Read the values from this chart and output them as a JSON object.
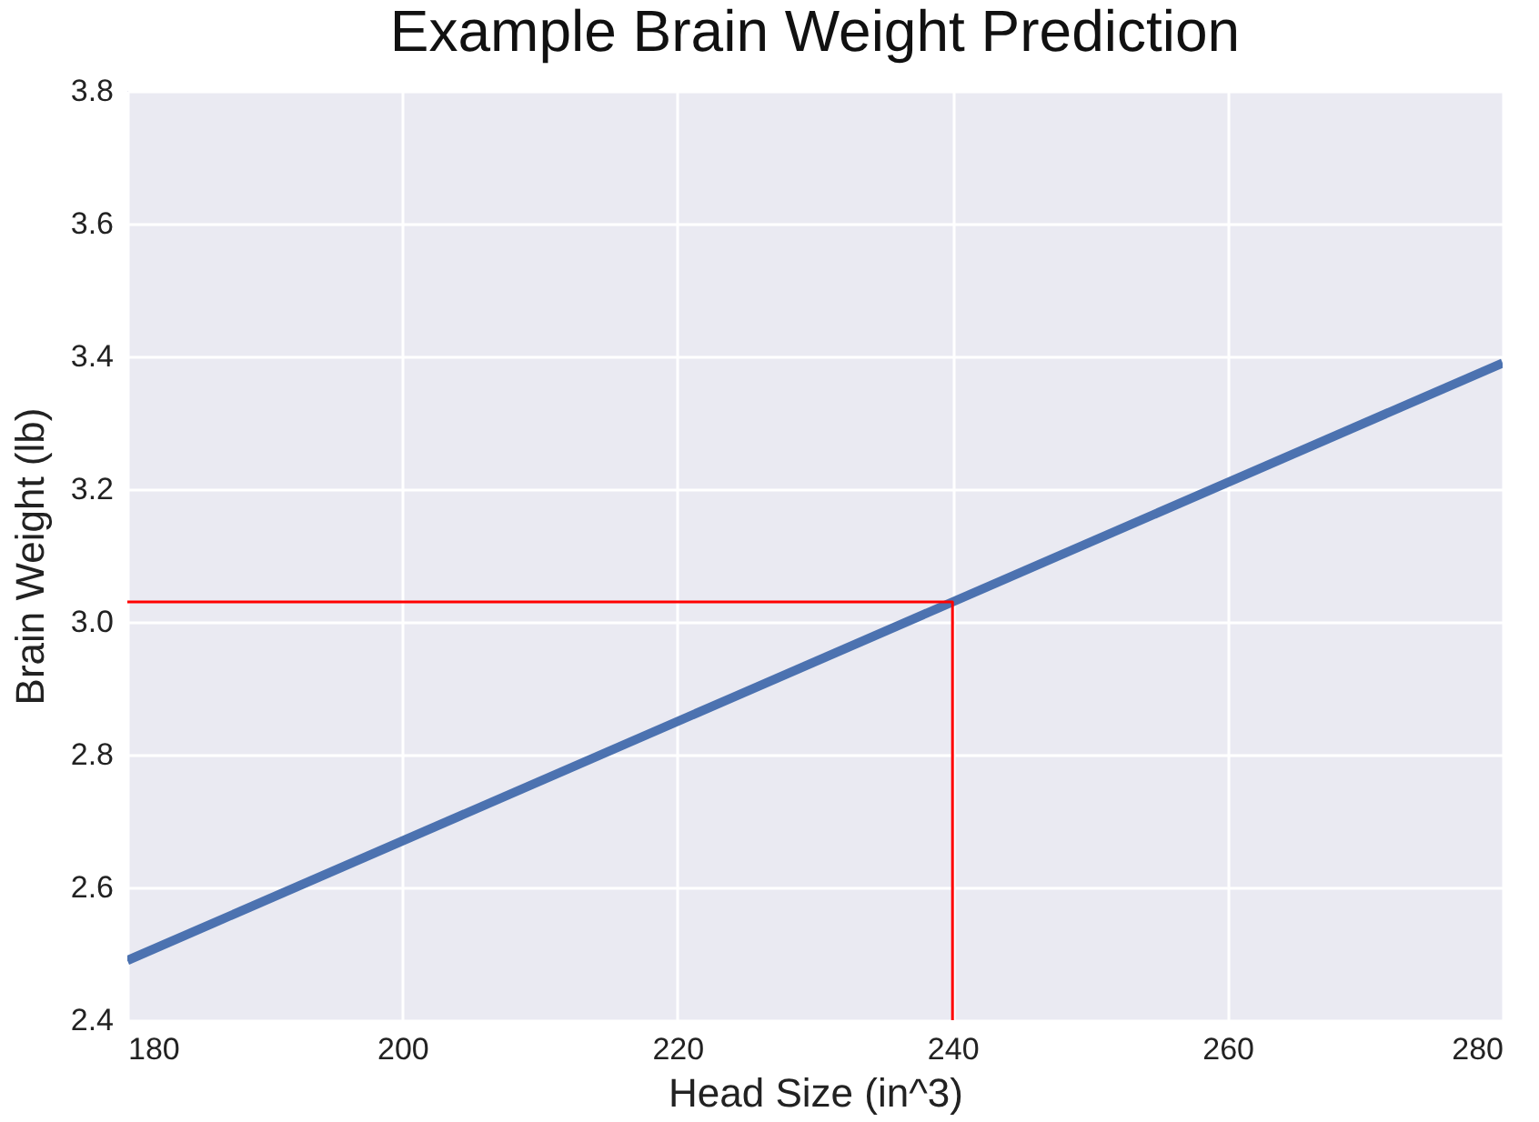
{
  "chart_data": {
    "type": "line",
    "title": "Example Brain Weight Prediction",
    "xlabel": "Head Size (in^3)",
    "ylabel": "Brain Weight (lb)",
    "series": [
      {
        "color": "#4c72b0",
        "x": [
          180,
          280
        ],
        "values": [
          2.49,
          3.39
        ]
      },
      {
        "color": "#ff0000",
        "x": [
          180,
          240,
          240
        ],
        "values": [
          3.03,
          3.03,
          2.4
        ]
      }
    ],
    "xlim": [
      180,
      280
    ],
    "xticks": [
      180,
      200,
      220,
      240,
      260,
      280
    ],
    "ylim": [
      2.4,
      3.8
    ],
    "yticks": [
      2.4,
      2.6,
      2.8,
      {
        "value": 3,
        "label": "3.0"
      },
      3.2,
      3.4,
      3.6,
      3.8
    ],
    "grid": true,
    "marker": "none",
    "line_style": "solid"
  }
}
